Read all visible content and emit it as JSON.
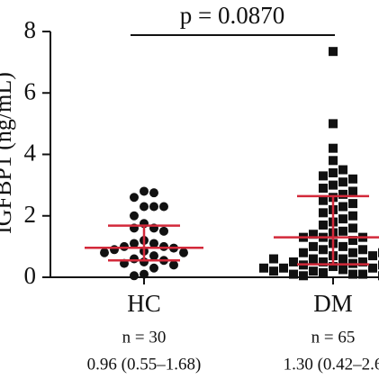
{
  "chart_data": {
    "type": "dotplot",
    "y_label": "IGFBP1 (ng/mL)",
    "ylim": [
      0,
      8
    ],
    "yticks": [
      0,
      2,
      4,
      6,
      8
    ],
    "categories": [
      "HC",
      "DM"
    ],
    "counts": [
      "n = 30",
      "n = 65"
    ],
    "summaries": [
      "0.96 (0.55–1.68)",
      "1.30 (0.42–2.6"
    ],
    "annotation": "p = 0.0870",
    "color": "#111111",
    "summary_color": "#d3293a",
    "groups": [
      {
        "marker": "circle",
        "median": 0.96,
        "q1": 0.55,
        "q3": 1.68,
        "values": [
          2.8,
          2.75,
          2.6,
          2.3,
          2.3,
          2.3,
          2.0,
          1.75,
          1.6,
          1.6,
          1.5,
          1.2,
          1.1,
          1.1,
          1.0,
          1.0,
          0.95,
          0.9,
          0.85,
          0.8,
          0.8,
          0.7,
          0.6,
          0.55,
          0.5,
          0.45,
          0.4,
          0.3,
          0.1,
          0.05
        ]
      },
      {
        "marker": "square",
        "median": 1.3,
        "q1": 0.42,
        "q3": 2.64,
        "values": [
          7.35,
          5.0,
          4.2,
          3.8,
          3.5,
          3.4,
          3.3,
          3.2,
          3.1,
          3.0,
          2.9,
          2.8,
          2.7,
          2.6,
          2.5,
          2.4,
          2.3,
          2.2,
          2.1,
          2.0,
          1.9,
          1.8,
          1.7,
          1.6,
          1.5,
          1.45,
          1.4,
          1.3,
          1.3,
          1.3,
          1.2,
          1.1,
          1.0,
          1.0,
          0.9,
          0.9,
          0.8,
          0.8,
          0.7,
          0.7,
          0.6,
          0.6,
          0.5,
          0.5,
          0.5,
          0.45,
          0.4,
          0.4,
          0.35,
          0.3,
          0.3,
          0.3,
          0.25,
          0.2,
          0.2,
          0.2,
          0.15,
          0.1,
          0.1,
          0.1,
          0.05,
          0.05,
          0.3,
          0.6,
          0.8
        ]
      }
    ]
  }
}
